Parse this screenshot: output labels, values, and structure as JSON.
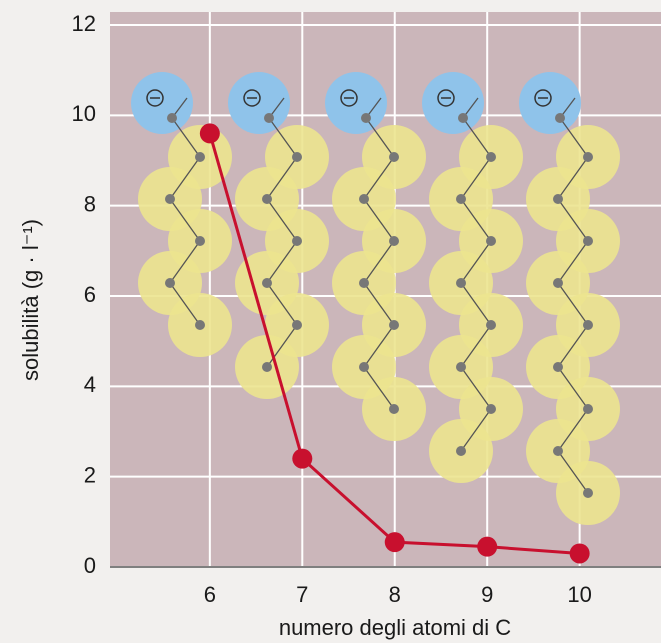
{
  "chart_data": {
    "type": "line",
    "xlabel": "numero degli atomi di C",
    "ylabel": "solubilità (g · l⁻¹)",
    "x": [
      6,
      7,
      8,
      9,
      10
    ],
    "series": [
      {
        "color": "#c8102e",
        "values": [
          9.6,
          2.4,
          0.55,
          0.45,
          0.3
        ]
      }
    ],
    "xlim": [
      4.92,
      10.88
    ],
    "xticks": [
      6,
      7,
      8,
      9,
      10
    ],
    "ylim": [
      0,
      12
    ],
    "yticks": [
      0,
      2,
      4,
      6,
      8,
      10,
      12
    ],
    "grid": true
  }
}
